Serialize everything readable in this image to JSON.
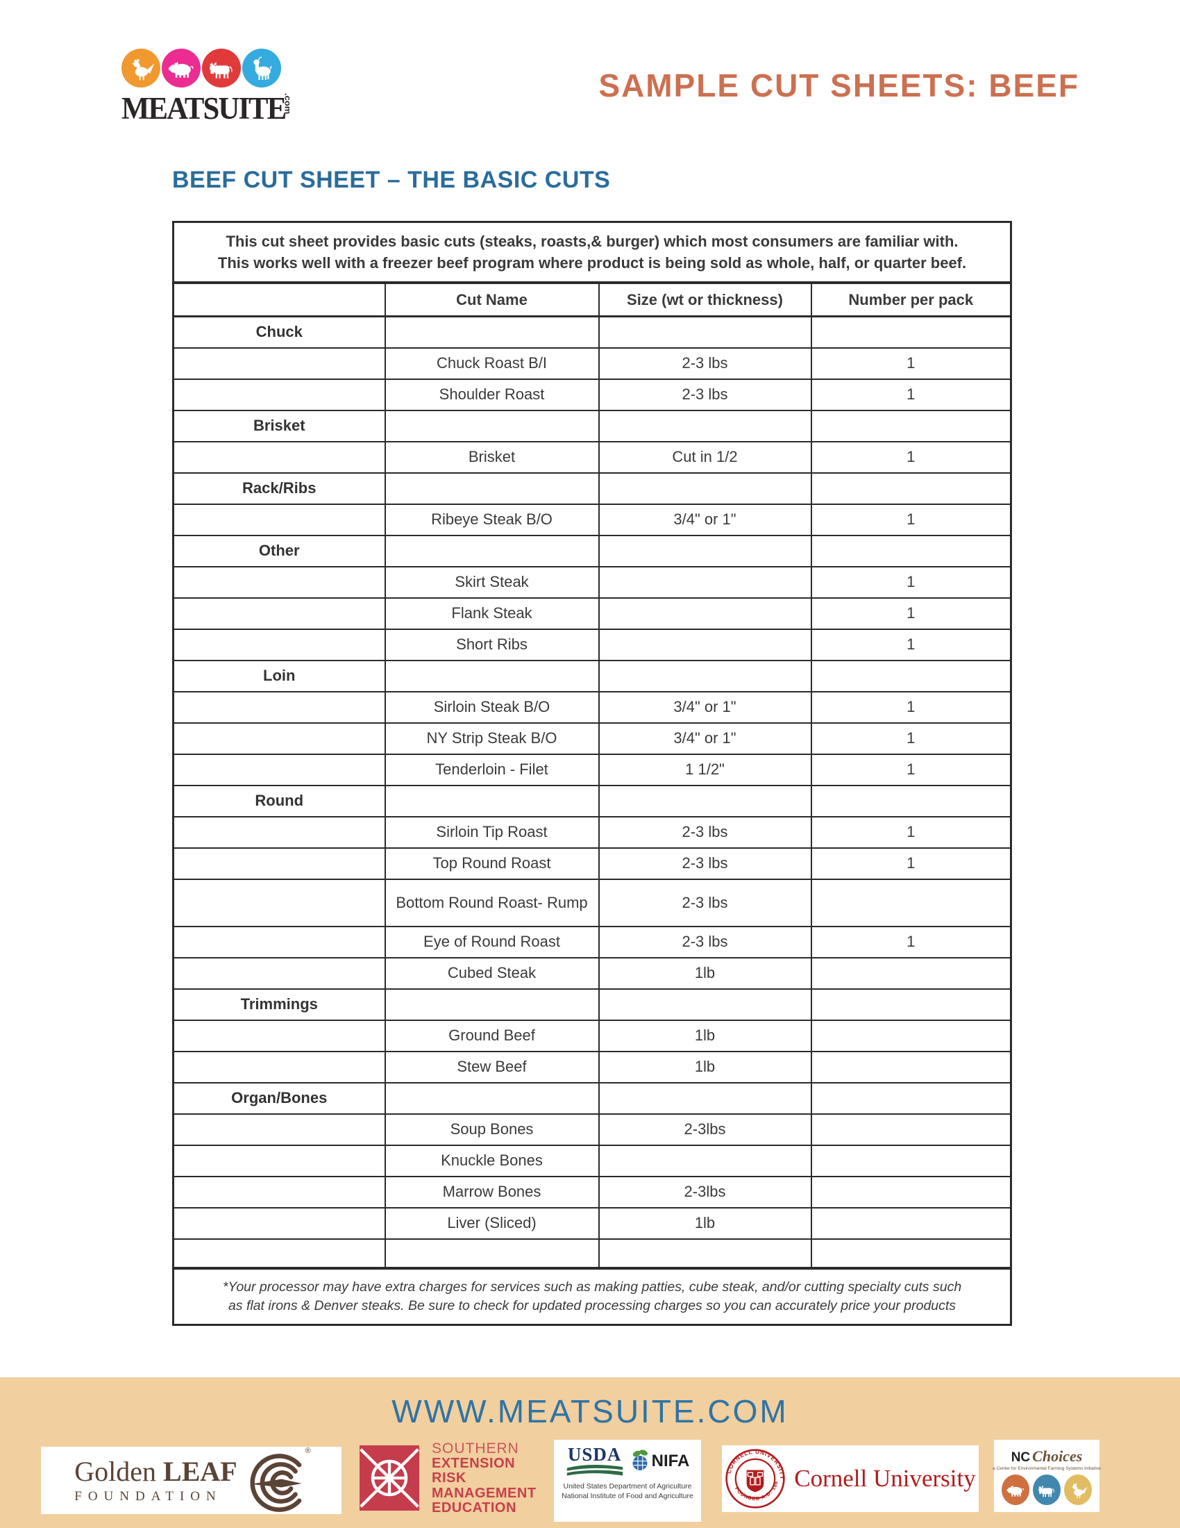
{
  "header": {
    "logo": {
      "brand": "MEATSUITE",
      "tld": ".com",
      "animals": [
        {
          "name": "chicken",
          "color": "#f0992f"
        },
        {
          "name": "pig",
          "color": "#ec2c90"
        },
        {
          "name": "cow",
          "color": "#e13a3b"
        },
        {
          "name": "goat",
          "color": "#35abdf"
        }
      ]
    },
    "title": "SAMPLE CUT SHEETS: BEEF",
    "title_color": "#cc7050"
  },
  "section_heading": "BEEF CUT SHEET – THE BASIC CUTS",
  "section_heading_color": "#2a6c9c",
  "table": {
    "intro_lines": [
      "This cut sheet provides basic cuts (steaks, roasts,& burger) which most consumers are familiar with.",
      "This works well with a freezer beef program where product is being sold as whole, half, or quarter beef."
    ],
    "columns": [
      "",
      "Cut Name",
      "Size (wt or thickness)",
      "Number per pack"
    ],
    "rows": [
      {
        "section": "Chuck"
      },
      {
        "name": "Chuck Roast B/I",
        "size": "2-3 lbs",
        "number": "1"
      },
      {
        "name": "Shoulder Roast",
        "size": "2-3 lbs",
        "number": "1"
      },
      {
        "section": "Brisket"
      },
      {
        "name": "Brisket",
        "size": "Cut in 1/2",
        "number": "1"
      },
      {
        "section": "Rack/Ribs"
      },
      {
        "name": "Ribeye Steak B/O",
        "size": "3/4\" or 1\"",
        "number": "1"
      },
      {
        "section": "Other"
      },
      {
        "name": "Skirt Steak",
        "size": "",
        "number": "1"
      },
      {
        "name": "Flank Steak",
        "size": "",
        "number": "1"
      },
      {
        "name": "Short Ribs",
        "size": "",
        "number": "1"
      },
      {
        "section": "Loin"
      },
      {
        "name": "Sirloin Steak B/O",
        "size": "3/4\" or 1\"",
        "number": "1"
      },
      {
        "name": "NY Strip Steak B/O",
        "size": "3/4\" or 1\"",
        "number": "1"
      },
      {
        "name": "Tenderloin - Filet",
        "size": "1 1/2\"",
        "number": "1"
      },
      {
        "section": "Round"
      },
      {
        "name": "Sirloin Tip Roast",
        "size": "2-3 lbs",
        "number": "1"
      },
      {
        "name": "Top Round Roast",
        "size": "2-3 lbs",
        "number": "1"
      },
      {
        "name": "Bottom Round Roast- Rump",
        "size": "2-3 lbs",
        "number": "",
        "tall": true
      },
      {
        "name": "Eye of Round Roast",
        "size": "2-3 lbs",
        "number": "1"
      },
      {
        "name": "Cubed Steak",
        "size": "1lb",
        "number": ""
      },
      {
        "section": "Trimmings"
      },
      {
        "name": "Ground Beef",
        "size": "1lb",
        "number": ""
      },
      {
        "name": "Stew Beef",
        "size": "1lb",
        "number": ""
      },
      {
        "section": "Organ/Bones"
      },
      {
        "name": "Soup Bones",
        "size": "2-3lbs",
        "number": ""
      },
      {
        "name": "Knuckle Bones",
        "size": "",
        "number": ""
      },
      {
        "name": "Marrow Bones",
        "size": "2-3lbs",
        "number": ""
      },
      {
        "name": "Liver (Sliced)",
        "size": "1lb",
        "number": ""
      },
      {
        "name": "",
        "size": "",
        "number": "",
        "empty": true
      }
    ],
    "footnote": "*Your processor may have extra charges for services such as making patties, cube steak, and/or cutting specialty cuts such as flat irons & Denver steaks.  Be sure to check for updated processing charges so you can accurately price your products"
  },
  "footer": {
    "website": "WWW.MEATSUITE.COM",
    "website_color": "#2e74a6",
    "banner_color": "#f2cf9e",
    "logos": {
      "golden_leaf": {
        "name_regular": "Golden ",
        "name_bold": "LEAF",
        "line2": "FOUNDATION",
        "registered": "®",
        "color": "#5b4336"
      },
      "serme": {
        "lines": [
          "SOUTHERN",
          "EXTENSION",
          "RISK",
          "MANAGEMENT",
          "EDUCATION"
        ],
        "color": "#c53c4d"
      },
      "usda_nifa": {
        "usda": "USDA",
        "nifa": "NIFA",
        "caption1": "United States Department of Agriculture",
        "caption2": "National Institute of Food and Agriculture"
      },
      "cornell": {
        "wordmark": "Cornell University",
        "seal_top": "CORNELL UNIVERSITY",
        "seal_bottom": "FOUNDED A.D. 1865",
        "color": "#b31b1b"
      },
      "nc_choices": {
        "nc": "NC",
        "script": "Choices",
        "tagline": "a Center for Environmental Farming Systems Initiative",
        "medallions": [
          {
            "animal": "pig",
            "color": "#ce7040"
          },
          {
            "animal": "cow",
            "color": "#4287ae"
          },
          {
            "animal": "chicken",
            "color": "#e2bc62"
          }
        ]
      }
    }
  }
}
